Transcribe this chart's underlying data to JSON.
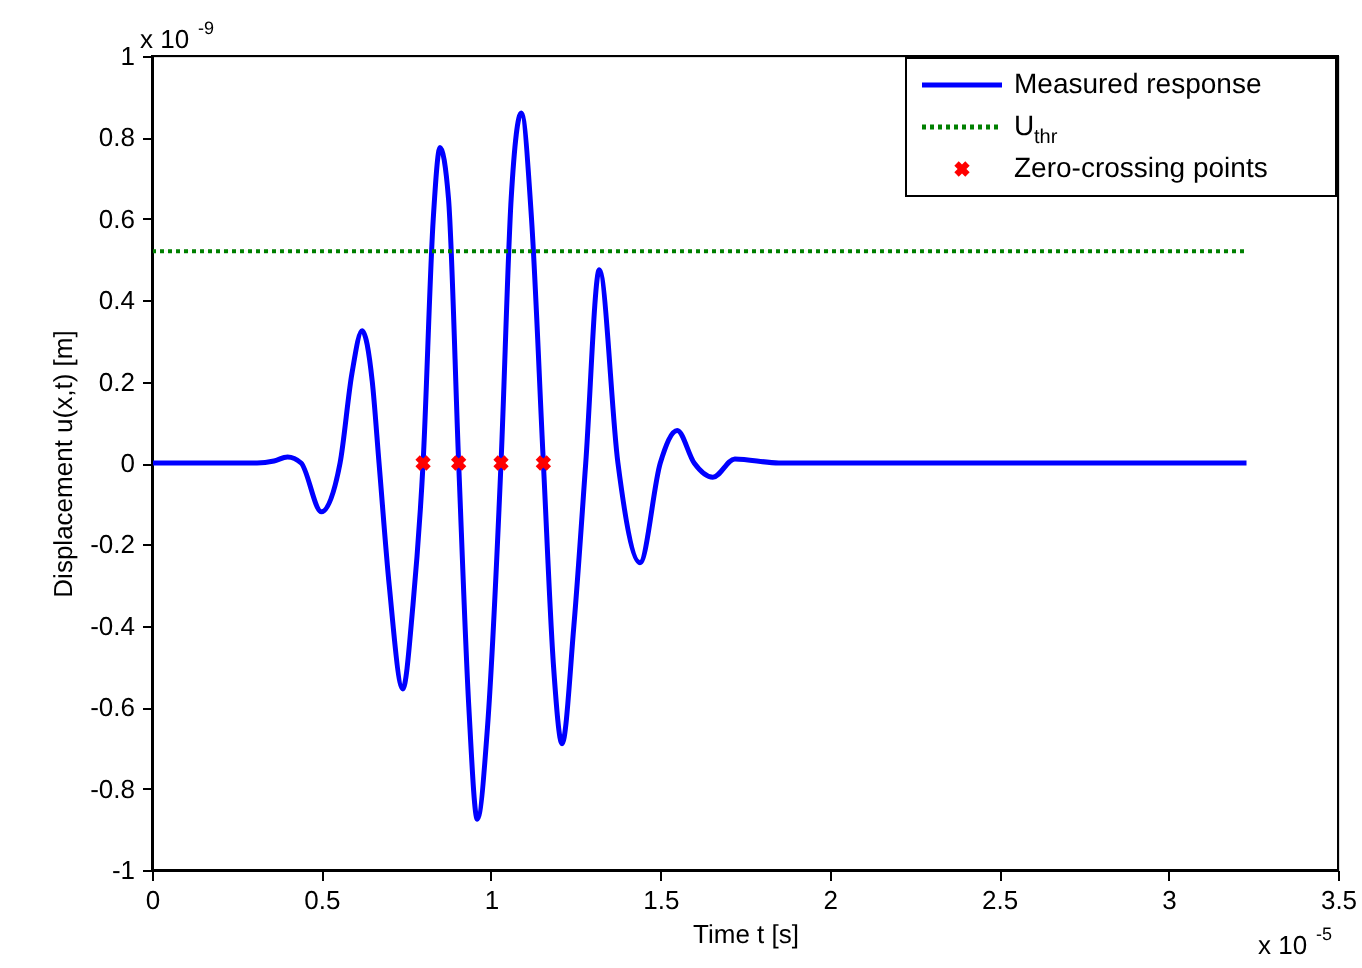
{
  "chart_data": {
    "type": "line",
    "xlabel": "Time t [s]",
    "ylabel": "Displacement u(x,t) [m]",
    "annotations": [
      "x 10$^{-5}$",
      "x 10$^{-9}$"
    ],
    "xlim": [
      0,
      3.5
    ],
    "xticks": [
      0,
      0.5,
      1,
      1.5,
      2,
      2.5,
      3,
      3.5
    ],
    "ylim": [
      -1,
      1
    ],
    "yticks": [
      -1,
      -0.8,
      -0.6,
      -0.4,
      -0.2,
      0,
      0.2,
      0.4,
      0.6,
      0.8,
      1
    ],
    "grid": false,
    "legend": "top right",
    "series": [
      {
        "name": "Measured response",
        "color": "#0000ff",
        "line_style": "solid",
        "marker": "none",
        "x": [
          0,
          0.2,
          0.31,
          0.36,
          0.4,
          0.44,
          0.5,
          0.555,
          0.59,
          0.62,
          0.65,
          0.67,
          0.7,
          0.74,
          0.77,
          0.8,
          0.83,
          0.85,
          0.875,
          0.905,
          0.935,
          0.96,
          0.99,
          1.03,
          1.06,
          1.09,
          1.12,
          1.155,
          1.185,
          1.21,
          1.245,
          1.28,
          1.32,
          1.375,
          1.44,
          1.5,
          1.55,
          1.6,
          1.655,
          1.72,
          1.85,
          2.5,
          3.23
        ],
        "values": [
          0,
          0,
          0,
          0.005,
          0.015,
          0,
          -0.12,
          0,
          0.22,
          0.325,
          0.2,
          0,
          -0.3,
          -0.555,
          -0.35,
          0,
          0.6,
          0.775,
          0.65,
          0,
          -0.6,
          -0.875,
          -0.65,
          0,
          0.65,
          0.86,
          0.6,
          0,
          -0.5,
          -0.69,
          -0.4,
          0,
          0.475,
          0,
          -0.245,
          0,
          0.08,
          0,
          -0.035,
          0.01,
          0,
          0,
          0
        ]
      },
      {
        "name": "U$_{thr}$",
        "color": "#008000",
        "line_style": "dotted",
        "marker": "none",
        "x": [
          0,
          3.23
        ],
        "values": [
          0.52,
          0.52
        ]
      },
      {
        "name": "Zero-crossing points",
        "type": "scatter",
        "color": "#ff0000",
        "marker": "cross",
        "x": [
          0.8,
          0.905,
          1.03,
          1.155
        ],
        "values": [
          0,
          0,
          0,
          0
        ]
      }
    ]
  }
}
